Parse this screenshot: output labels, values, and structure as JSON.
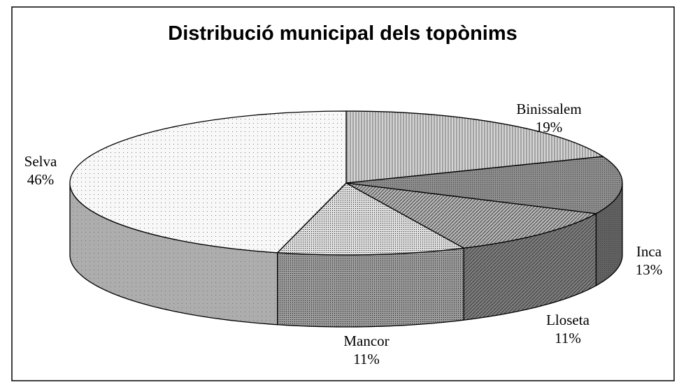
{
  "chart_data": {
    "type": "pie3d",
    "title": "Distribució municipal dels topònims",
    "categories": [
      "Binissalem",
      "Inca",
      "Lloseta",
      "Mancor",
      "Selva"
    ],
    "values": [
      19,
      13,
      11,
      11,
      46
    ],
    "value_labels": [
      "19%",
      "13%",
      "11%",
      "11%",
      "46%"
    ],
    "colors": [
      "#d4d4d4",
      "#8c8c8c",
      "#b4b4b4",
      "#dcdcdc",
      "#f8f8f8"
    ]
  }
}
